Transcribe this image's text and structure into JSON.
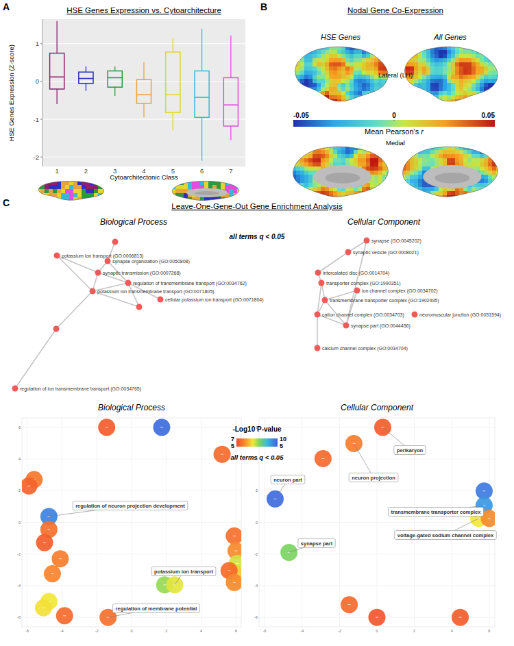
{
  "figure": {
    "panel_labels": [
      "A",
      "B",
      "C"
    ],
    "panel_c_title": "Leave-One-Gene-Out Gene Enrichment Analysis",
    "network_note": "all terms q < 0.05",
    "bubble_legend": {
      "title": "-Log10 P-value",
      "range": [
        5,
        10
      ],
      "labels": [
        "7",
        "10",
        "5",
        "5"
      ],
      "note": "all terms q < 0.05"
    }
  },
  "chart_data": [
    {
      "type": "box",
      "title": "HSE Genes Expression vs. Cytoarchitecture",
      "x_label": "Cytoarchitectonic Class",
      "y_label": "HSE Genes Expression (Z-score)",
      "categories": [
        "1",
        "2",
        "3",
        "4",
        "5",
        "6",
        "7"
      ],
      "min": [
        -0.6,
        -0.25,
        -0.38,
        -0.95,
        -1.3,
        -2.1,
        -1.55
      ],
      "q1": [
        -0.2,
        -0.05,
        -0.15,
        -0.58,
        -0.82,
        -0.95,
        -1.18
      ],
      "median": [
        0.12,
        0.08,
        0.1,
        -0.35,
        -0.35,
        -0.42,
        -0.62
      ],
      "q3": [
        0.75,
        0.25,
        0.28,
        0.05,
        0.78,
        0.28,
        0.1
      ],
      "max": [
        1.6,
        0.4,
        0.4,
        0.52,
        1.15,
        1.4,
        1.22
      ],
      "colors": [
        "#8e1f6b",
        "#2b2fc4",
        "#2a9a3a",
        "#e8a33c",
        "#e3d52a",
        "#35bcd4",
        "#e04fe0"
      ],
      "ylim": [
        -2.25,
        1.65
      ],
      "yticks": [
        -2,
        -1,
        0,
        1
      ],
      "grid": true
    },
    {
      "type": "brain_map",
      "title": "Nodal Gene Co-Expression",
      "map_titles": [
        "HSE Genes",
        "All Genes"
      ],
      "view_labels": [
        "Lateral (LH)",
        "Medial"
      ],
      "colorbar_label": "Mean Pearson's r",
      "colorbar_range": [
        -0.05,
        0.05
      ],
      "colorbar_ticks": [
        -0.05,
        0,
        0.05
      ]
    },
    {
      "type": "network",
      "title": "Biological Process",
      "nodes": [
        {
          "label": null
        },
        {
          "label": "potassium ion transport (GO:0006813)"
        },
        {
          "label": "synapse organization (GO:0050808)"
        },
        {
          "label": "synaptic transmission (GO:0007268)"
        },
        {
          "label": "regulation of transmembrane transport (GO:0034762)"
        },
        {
          "label": "potassium ion transmembrane transport (GO:0071805)"
        },
        {
          "label": null
        },
        {
          "label": "cellular potassium ion transport (GO:0071804)"
        },
        {
          "label": null
        },
        {
          "label": "regulation of ion transmembrane transport (GO:0034765)"
        }
      ],
      "edges": [
        [
          0,
          2
        ],
        [
          1,
          3
        ],
        [
          2,
          3
        ],
        [
          3,
          4
        ],
        [
          3,
          5
        ],
        [
          1,
          5
        ],
        [
          5,
          4
        ],
        [
          5,
          6
        ],
        [
          4,
          6
        ],
        [
          4,
          7
        ],
        [
          5,
          8
        ],
        [
          8,
          9
        ],
        [
          2,
          4
        ]
      ]
    },
    {
      "type": "network",
      "title": "Cellular Component",
      "nodes": [
        {
          "label": "synapse (GO:0045202)"
        },
        {
          "label": "synaptic vesicle (GO:0008021)"
        },
        {
          "label": "intercalated disc (GO:0014704)"
        },
        {
          "label": "transporter complex (GO:1990351)"
        },
        {
          "label": "ion channel complex (GO:0034702)"
        },
        {
          "label": "transmembrane transporter complex (GO:1902495)"
        },
        {
          "label": "cation channel complex (GO:0034703)"
        },
        {
          "label": "neuromuscular junction (GO:0031594)"
        },
        {
          "label": "synapse part (GO:0044456)"
        },
        {
          "label": "calcium channel complex (GO:0034704)"
        }
      ],
      "edges": [
        [
          0,
          1
        ],
        [
          1,
          2
        ],
        [
          2,
          3
        ],
        [
          3,
          5
        ],
        [
          3,
          6
        ],
        [
          5,
          4
        ],
        [
          5,
          6
        ],
        [
          6,
          8
        ],
        [
          6,
          9
        ],
        [
          5,
          8
        ],
        [
          0,
          8
        ],
        [
          4,
          8
        ]
      ]
    },
    {
      "type": "scatter",
      "title": "Biological Process",
      "x": [
        -1.43,
        1.73,
        5.2,
        -5.6,
        -5.9,
        -4.75,
        -4.75,
        -5.0,
        -4.1,
        -4.55,
        -4.75,
        -5.06,
        -3.85,
        -1.35,
        1.9,
        2.48,
        5.9,
        6.0,
        6.07,
        5.9,
        5.6,
        5.9
      ],
      "y": [
        6.0,
        6.0,
        4.3,
        2.7,
        2.3,
        0.37,
        -0.45,
        -1.28,
        -2.3,
        -3.25,
        -5.0,
        -5.4,
        -5.9,
        -6.0,
        -3.95,
        -3.95,
        -0.86,
        -1.8,
        -2.6,
        -3.25,
        -3.05,
        -3.8
      ],
      "neg_log10_p": [
        5.3,
        9.8,
        5.5,
        5.7,
        5.4,
        9.5,
        5.6,
        5.3,
        5.8,
        5.9,
        7.0,
        6.9,
        5.5,
        5.6,
        7.6,
        7.1,
        5.6,
        6.0,
        7.2,
        6.7,
        5.5,
        6.0
      ],
      "point_labels": [
        null,
        null,
        null,
        null,
        null,
        "regulation of neuron projection development",
        null,
        null,
        null,
        null,
        null,
        null,
        null,
        "regulation of membrane potential",
        null,
        "potassium ion transport",
        null,
        null,
        null,
        null,
        null,
        null
      ],
      "xlim": [
        -6.3,
        6.3
      ],
      "ylim": [
        -6.6,
        6.6
      ],
      "xticks": [
        -6,
        -4,
        -2,
        0,
        2,
        4,
        6
      ],
      "yticks": [
        -6,
        -4,
        -2,
        0,
        2,
        4,
        6
      ],
      "grid": true
    },
    {
      "type": "scatter",
      "title": "Cellular Component",
      "x": [
        0.31,
        -1.23,
        -2.88,
        -5.44,
        -4.7,
        5.73,
        5.73,
        5.44,
        6.0,
        -1.48,
        0.0,
        4.45
      ],
      "y": [
        6.0,
        4.98,
        4.03,
        1.48,
        -1.9,
        1.98,
        1.07,
        0.25,
        0.25,
        -5.2,
        -6.0,
        -6.0
      ],
      "neg_log10_p": [
        5.3,
        5.8,
        5.5,
        9.8,
        7.8,
        9.6,
        9.2,
        7.0,
        6.0,
        5.5,
        5.2,
        5.3
      ],
      "point_labels": [
        "perikaryon",
        "neuron projection",
        null,
        "neuron part",
        "synapse part",
        null,
        "transmembrane transporter complex",
        "voltage-gated sodium channel complex",
        null,
        null,
        null,
        null
      ],
      "xlim": [
        -6.3,
        6.3
      ],
      "ylim": [
        -6.6,
        6.6
      ],
      "xticks": [
        -6,
        -4,
        -2,
        0,
        2,
        4,
        6
      ],
      "yticks": [
        -6,
        -4,
        -2,
        0,
        2,
        4,
        6
      ],
      "grid": true
    }
  ]
}
